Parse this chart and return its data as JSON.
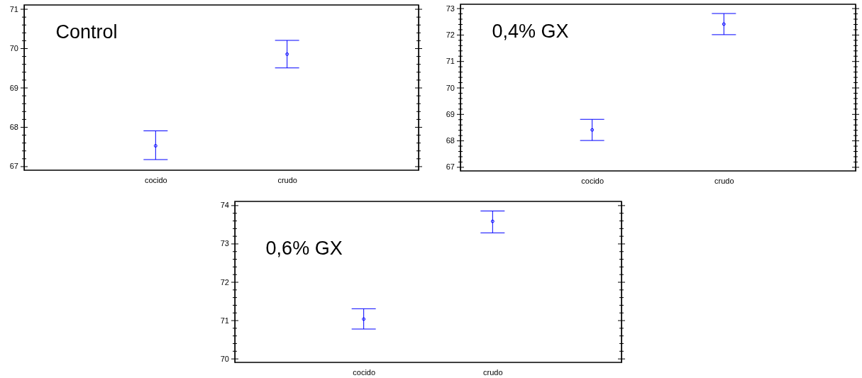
{
  "chart_data": [
    {
      "type": "scatter",
      "categories": [
        "cocido",
        "crudo"
      ],
      "annotations": [
        "Control"
      ],
      "marker": "circle",
      "series": [
        {
          "color": "#0000ff",
          "values": [
            67.52,
            69.85
          ],
          "errors": [
            [
              67.17,
              67.9
            ],
            [
              69.5,
              70.2
            ]
          ]
        }
      ],
      "ylim": [
        66.9,
        71.1
      ],
      "yticks": [
        67,
        {
          "value": 67.2,
          "label": null
        },
        {
          "value": 67.4,
          "label": null
        },
        {
          "value": 67.6,
          "label": null
        },
        {
          "value": 67.8,
          "label": null
        },
        68,
        {
          "value": 68.2,
          "label": null
        },
        {
          "value": 68.4,
          "label": null
        },
        {
          "value": 68.6,
          "label": null
        },
        {
          "value": 68.8,
          "label": null
        },
        69,
        {
          "value": 69.2,
          "label": null
        },
        {
          "value": 69.4,
          "label": null
        },
        {
          "value": 69.6,
          "label": null
        },
        {
          "value": 69.8,
          "label": null
        },
        70,
        {
          "value": 70.2,
          "label": null
        },
        {
          "value": 70.4,
          "label": null
        },
        {
          "value": 70.6,
          "label": null
        },
        {
          "value": 70.8,
          "label": null
        },
        71
      ]
    },
    {
      "type": "scatter",
      "categories": [
        "cocido",
        "crudo"
      ],
      "annotations": [
        "0,4% GX"
      ],
      "marker": "circle",
      "series": [
        {
          "color": "#0000ff",
          "values": [
            68.4,
            72.4
          ],
          "errors": [
            [
              68.0,
              68.8
            ],
            [
              72.0,
              72.8
            ]
          ]
        }
      ],
      "ylim": [
        66.85,
        73.15
      ],
      "yticks": [
        67,
        {
          "value": 67.2,
          "label": null
        },
        {
          "value": 67.4,
          "label": null
        },
        {
          "value": 67.6,
          "label": null
        },
        {
          "value": 67.8,
          "label": null
        },
        68,
        {
          "value": 68.2,
          "label": null
        },
        {
          "value": 68.4,
          "label": null
        },
        {
          "value": 68.6,
          "label": null
        },
        {
          "value": 68.8,
          "label": null
        },
        69,
        {
          "value": 69.2,
          "label": null
        },
        {
          "value": 69.4,
          "label": null
        },
        {
          "value": 69.6,
          "label": null
        },
        {
          "value": 69.8,
          "label": null
        },
        70,
        {
          "value": 70.2,
          "label": null
        },
        {
          "value": 70.4,
          "label": null
        },
        {
          "value": 70.6,
          "label": null
        },
        {
          "value": 70.8,
          "label": null
        },
        71,
        {
          "value": 71.2,
          "label": null
        },
        {
          "value": 71.4,
          "label": null
        },
        {
          "value": 71.6,
          "label": null
        },
        {
          "value": 71.8,
          "label": null
        },
        72,
        {
          "value": 72.2,
          "label": null
        },
        {
          "value": 72.4,
          "label": null
        },
        {
          "value": 72.6,
          "label": null
        },
        {
          "value": 72.8,
          "label": null
        },
        73
      ]
    },
    {
      "type": "scatter",
      "categories": [
        "cocido",
        "crudo"
      ],
      "annotations": [
        "0,6% GX"
      ],
      "marker": "circle",
      "series": [
        {
          "color": "#0000ff",
          "values": [
            71.03,
            73.58
          ],
          "errors": [
            [
              70.77,
              71.3
            ],
            [
              73.28,
              73.85
            ]
          ]
        }
      ],
      "ylim": [
        69.9,
        74.1
      ],
      "yticks": [
        70,
        {
          "value": 70.2,
          "label": null
        },
        {
          "value": 70.4,
          "label": null
        },
        {
          "value": 70.6,
          "label": null
        },
        {
          "value": 70.8,
          "label": null
        },
        71,
        {
          "value": 71.2,
          "label": null
        },
        {
          "value": 71.4,
          "label": null
        },
        {
          "value": 71.6,
          "label": null
        },
        {
          "value": 71.8,
          "label": null
        },
        72,
        {
          "value": 72.2,
          "label": null
        },
        {
          "value": 72.4,
          "label": null
        },
        {
          "value": 72.6,
          "label": null
        },
        {
          "value": 72.8,
          "label": null
        },
        73,
        {
          "value": 73.2,
          "label": null
        },
        {
          "value": 73.4,
          "label": null
        },
        {
          "value": 73.6,
          "label": null
        },
        {
          "value": 73.8,
          "label": null
        },
        74
      ]
    }
  ]
}
